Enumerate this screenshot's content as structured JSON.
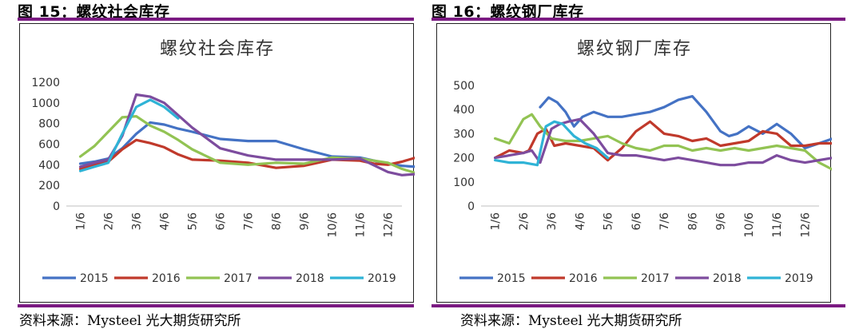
{
  "figures": [
    {
      "label": "图 15：螺纹社会库存",
      "source": "资料来源：Mysteel 光大期货研究所"
    },
    {
      "label": "图 16：螺纹钢厂库存",
      "source": "资料来源：Mysteel 光大期货研究所"
    }
  ],
  "colors": {
    "accent_rule": "#7b1a82"
  },
  "chart_data": [
    {
      "type": "line",
      "title": "螺纹社会库存",
      "xlabel": "",
      "ylabel": "",
      "x_ticks": [
        "1/6",
        "2/6",
        "3/6",
        "4/6",
        "5/6",
        "6/6",
        "7/6",
        "8/6",
        "9/6",
        "10/6",
        "11/6",
        "12/6"
      ],
      "ylim": [
        0,
        1200
      ],
      "y_ticks": [
        0,
        200,
        400,
        600,
        800,
        1000,
        1200
      ],
      "grid": false,
      "legend": "bottom",
      "series": [
        {
          "name": "2015",
          "color": "#4472c4",
          "x": [
            0,
            0.5,
            1,
            1.5,
            2,
            2.5,
            3,
            3.5,
            4,
            5,
            6,
            7,
            8,
            9,
            10,
            11,
            11.5,
            12
          ],
          "values": [
            410,
            430,
            460,
            560,
            700,
            810,
            790,
            750,
            720,
            650,
            630,
            630,
            550,
            480,
            470,
            410,
            390,
            380
          ]
        },
        {
          "name": "2016",
          "color": "#c0392b",
          "x": [
            0,
            0.5,
            1,
            1.5,
            2,
            2.5,
            3,
            3.5,
            4,
            5,
            6,
            7,
            8,
            9,
            10,
            10.5,
            11,
            11.5,
            12
          ],
          "values": [
            360,
            400,
            430,
            550,
            640,
            610,
            570,
            500,
            450,
            440,
            420,
            370,
            390,
            450,
            440,
            410,
            400,
            430,
            470
          ]
        },
        {
          "name": "2017",
          "color": "#92c353",
          "x": [
            0,
            0.5,
            1,
            1.5,
            2,
            2.5,
            3,
            3.5,
            4,
            5,
            6,
            7,
            8,
            9,
            10,
            11,
            11.5,
            12
          ],
          "values": [
            480,
            580,
            720,
            860,
            870,
            780,
            720,
            640,
            550,
            420,
            400,
            420,
            410,
            470,
            460,
            420,
            360,
            320
          ]
        },
        {
          "name": "2018",
          "color": "#7d4c9e",
          "x": [
            0,
            0.5,
            1,
            1.5,
            2,
            2.5,
            3,
            3.5,
            4,
            5,
            6,
            7,
            8,
            9,
            10,
            11,
            11.5,
            12
          ],
          "values": [
            380,
            420,
            450,
            680,
            1080,
            1060,
            1000,
            880,
            760,
            560,
            490,
            450,
            450,
            450,
            460,
            330,
            300,
            310
          ]
        },
        {
          "name": "2019",
          "color": "#2fb3d6",
          "x": [
            0,
            0.5,
            1,
            1.5,
            2,
            2.5,
            3,
            3.5
          ],
          "values": [
            340,
            380,
            420,
            700,
            960,
            1030,
            960,
            850
          ]
        }
      ]
    },
    {
      "type": "line",
      "title": "螺纹钢厂库存",
      "xlabel": "",
      "ylabel": "",
      "x_ticks": [
        "1/6",
        "2/6",
        "3/6",
        "4/6",
        "5/6",
        "6/6",
        "7/6",
        "8/6",
        "9/6",
        "10/6",
        "11/6",
        "12/6"
      ],
      "ylim": [
        0,
        500
      ],
      "y_ticks": [
        0,
        100,
        200,
        300,
        400,
        500
      ],
      "grid": false,
      "legend": "bottom",
      "series": [
        {
          "name": "2015",
          "color": "#4472c4",
          "x": [
            1.6,
            1.9,
            2.2,
            2.5,
            2.8,
            3.1,
            3.5,
            4,
            4.5,
            5,
            5.5,
            6,
            6.5,
            7,
            7.5,
            8,
            8.3,
            8.6,
            9,
            9.5,
            10,
            10.5,
            11,
            11.5,
            12,
            12.5
          ],
          "values": [
            410,
            450,
            430,
            390,
            330,
            370,
            390,
            370,
            370,
            380,
            390,
            410,
            440,
            455,
            390,
            310,
            290,
            300,
            330,
            300,
            340,
            300,
            240,
            260,
            280,
            230
          ]
        },
        {
          "name": "2016",
          "color": "#c0392b",
          "x": [
            0,
            0.5,
            1,
            1.2,
            1.5,
            1.8,
            2.1,
            2.5,
            3,
            3.5,
            4,
            4.5,
            5,
            5.5,
            6,
            6.5,
            7,
            7.5,
            8,
            8.5,
            9,
            9.5,
            10,
            10.5,
            11,
            11.5,
            12,
            12.5
          ],
          "values": [
            200,
            230,
            220,
            230,
            300,
            320,
            250,
            260,
            250,
            240,
            190,
            240,
            310,
            350,
            300,
            290,
            270,
            280,
            250,
            260,
            270,
            310,
            300,
            250,
            250,
            260,
            260,
            280
          ]
        },
        {
          "name": "2017",
          "color": "#92c353",
          "x": [
            0,
            0.5,
            1,
            1.3,
            1.6,
            2,
            2.5,
            3,
            3.5,
            4,
            4.5,
            5,
            5.5,
            6,
            6.5,
            7,
            7.5,
            8,
            8.5,
            9,
            9.5,
            10,
            10.5,
            11,
            11.5,
            12,
            12.5
          ],
          "values": [
            280,
            260,
            360,
            380,
            330,
            280,
            270,
            270,
            280,
            290,
            260,
            240,
            230,
            250,
            250,
            230,
            240,
            230,
            240,
            230,
            240,
            250,
            240,
            230,
            180,
            150,
            200
          ]
        },
        {
          "name": "2018",
          "color": "#7d4c9e",
          "x": [
            0,
            0.5,
            1,
            1.3,
            1.6,
            2,
            2.3,
            2.6,
            3,
            3.5,
            4,
            4.5,
            5,
            5.5,
            6,
            6.5,
            7,
            7.5,
            8,
            8.5,
            9,
            9.5,
            10,
            10.5,
            11,
            11.5,
            12,
            12.5
          ],
          "values": [
            200,
            210,
            220,
            230,
            180,
            320,
            340,
            350,
            360,
            300,
            220,
            210,
            210,
            200,
            190,
            200,
            190,
            180,
            170,
            170,
            180,
            180,
            210,
            190,
            180,
            190,
            200,
            180
          ]
        },
        {
          "name": "2019",
          "color": "#2fb3d6",
          "x": [
            0,
            0.5,
            1,
            1.5,
            1.8,
            2.1,
            2.4,
            2.8,
            3.2,
            3.6,
            4
          ],
          "values": [
            190,
            180,
            180,
            170,
            330,
            350,
            340,
            290,
            260,
            240,
            200
          ]
        }
      ]
    }
  ]
}
